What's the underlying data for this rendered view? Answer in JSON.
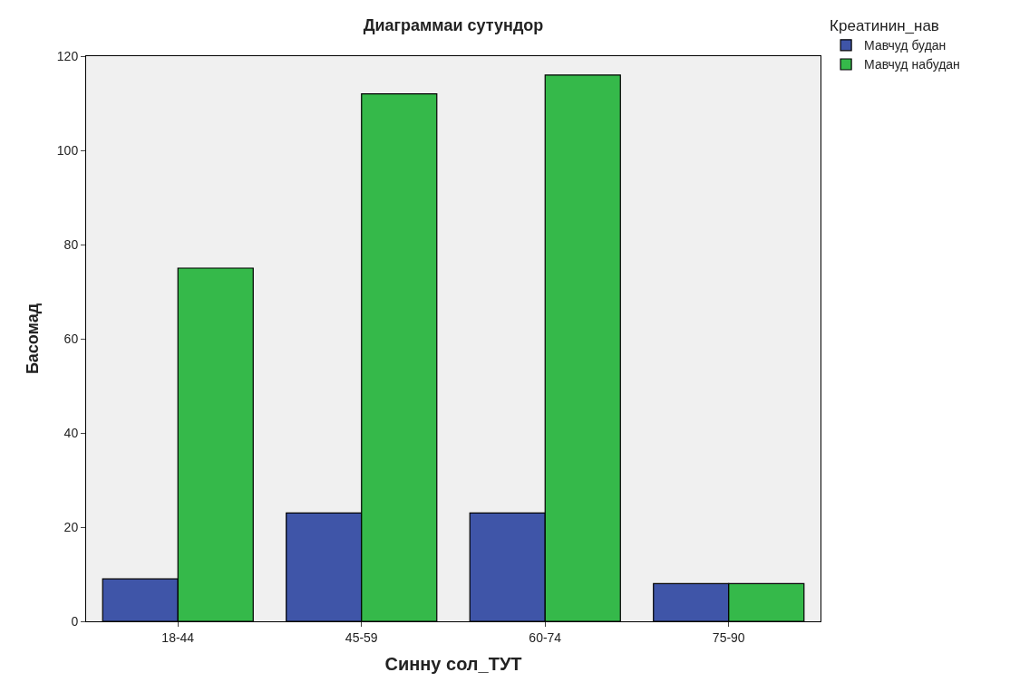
{
  "chart_data": {
    "type": "bar",
    "title": "Диаграммаи сутундор",
    "xlabel": "Синну сол_ТУТ",
    "ylabel": "Басомад",
    "legend_title": "Креатинин_нав",
    "categories": [
      "18-44",
      "45-59",
      "60-74",
      "75-90"
    ],
    "series": [
      {
        "name": "Мавчуд будан",
        "color": "#3f55a8",
        "values": [
          9,
          23,
          23,
          8
        ]
      },
      {
        "name": "Мавчуд набудан",
        "color": "#35b94a",
        "values": [
          75,
          112,
          116,
          8
        ]
      }
    ],
    "ylim": [
      0,
      120
    ],
    "yticks": [
      0,
      20,
      40,
      60,
      80,
      100,
      120
    ],
    "grid": false,
    "legend": "top right"
  }
}
